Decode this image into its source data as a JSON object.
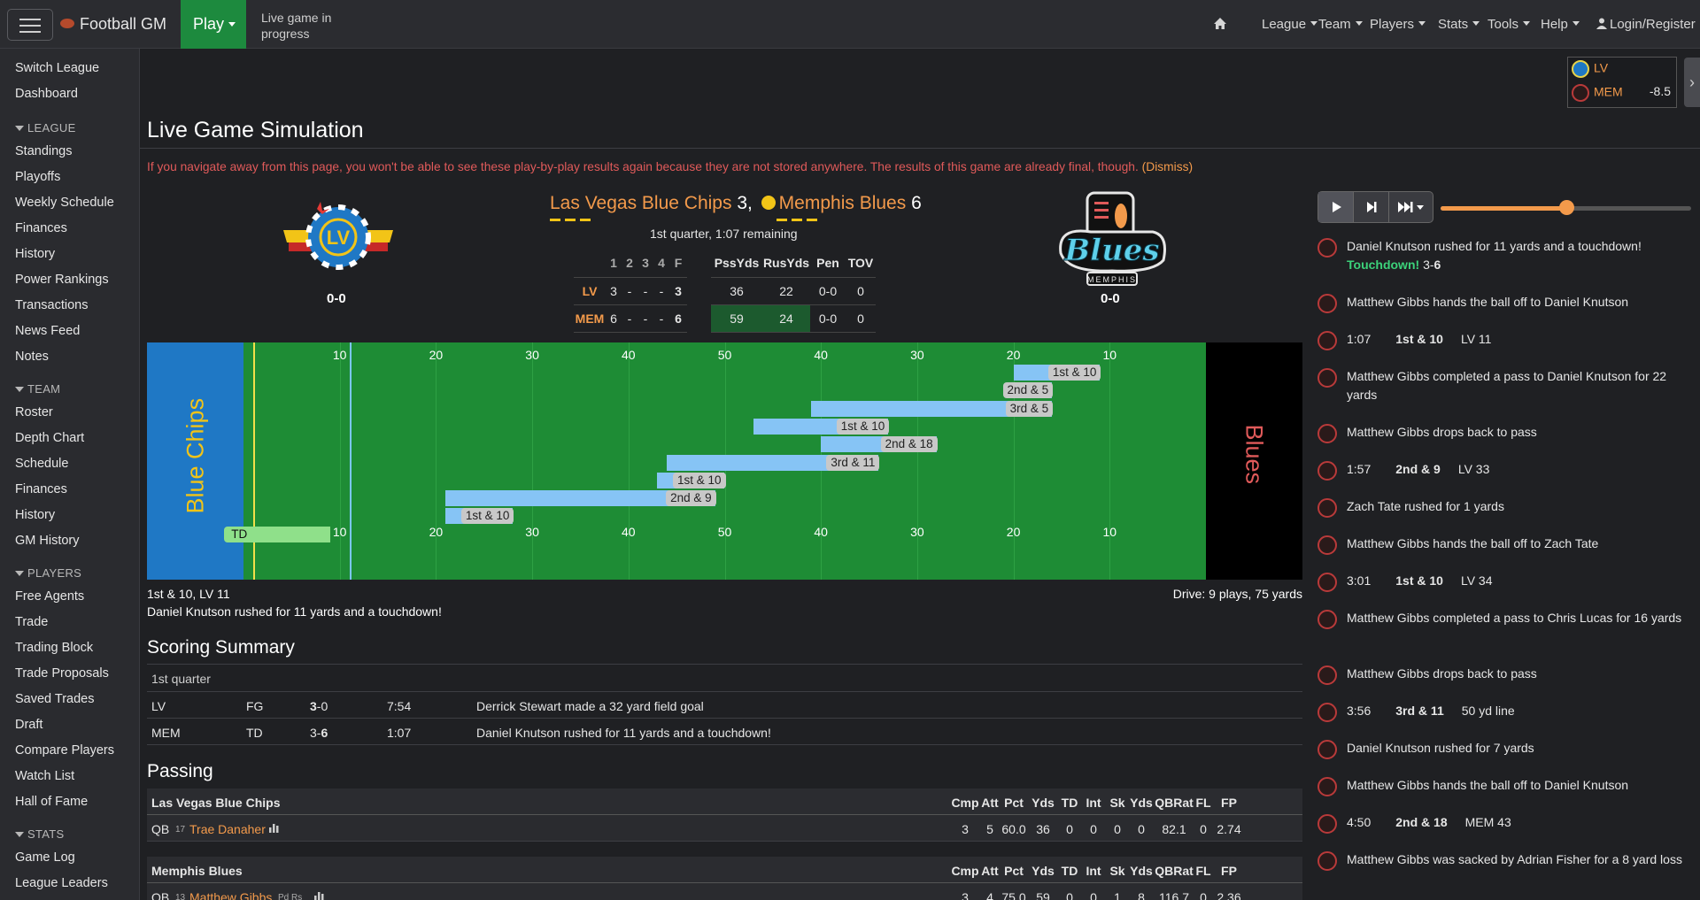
{
  "nav": {
    "brand": "Football GM",
    "play": "Play",
    "live_status": "Live game in progress",
    "menu": [
      "League",
      "Team",
      "Players",
      "Stats",
      "Tools",
      "Help"
    ],
    "login": "Login/Register"
  },
  "sidebar": {
    "top": [
      "Switch League",
      "Dashboard"
    ],
    "league_head": "LEAGUE",
    "league": [
      "Standings",
      "Playoffs",
      "Weekly Schedule",
      "Finances",
      "History",
      "Power Rankings",
      "Transactions",
      "News Feed",
      "Notes"
    ],
    "team_head": "TEAM",
    "team": [
      "Roster",
      "Depth Chart",
      "Schedule",
      "Finances",
      "History",
      "GM History"
    ],
    "players_head": "PLAYERS",
    "players": [
      "Free Agents",
      "Trade",
      "Trading Block",
      "Trade Proposals",
      "Saved Trades",
      "Draft",
      "Compare Players",
      "Watch List",
      "Hall of Fame"
    ],
    "stats_head": "STATS",
    "stats": [
      "Game Log",
      "League Leaders"
    ]
  },
  "mini_score": {
    "away": "LV",
    "home": "MEM",
    "spread": "-8.5"
  },
  "title": "Live Game Simulation",
  "warning": "If you navigate away from this page, you won't be able to see these play-by-play results again because they are not stored anywhere. The results of this game are already final, though.",
  "dismiss": "(Dismiss)",
  "game": {
    "away_name": "Las Vegas Blue Chips",
    "away_score": "3,",
    "home_name": "Memphis Blues",
    "home_score": "6",
    "away_record": "0-0",
    "home_record": "0-0",
    "clock": "1st quarter, 1:07 remaining"
  },
  "quarters": {
    "headers": [
      "",
      "1",
      "2",
      "3",
      "4",
      "F"
    ],
    "rows": [
      [
        "LV",
        "3",
        "-",
        "-",
        "-",
        "3"
      ],
      [
        "MEM",
        "6",
        "-",
        "-",
        "-",
        "6"
      ]
    ]
  },
  "team_stats": {
    "headers": [
      "PssYds",
      "RusYds",
      "Pen",
      "TOV"
    ],
    "rows": [
      [
        "36",
        "22",
        "0-0",
        "0"
      ],
      [
        "59",
        "24",
        "0-0",
        "0"
      ]
    ]
  },
  "field": {
    "away_ez": "Blue Chips",
    "home_ez": "Blues",
    "yard_numbers": [
      "10",
      "20",
      "30",
      "40",
      "50",
      "40",
      "30",
      "20",
      "10"
    ],
    "drives": [
      {
        "label": "1st & 10",
        "start": 80,
        "end": 89
      },
      {
        "label": "2nd & 5",
        "start": 80,
        "end": 84
      },
      {
        "label": "3rd & 5",
        "start": 59,
        "end": 84
      },
      {
        "label": "1st & 10",
        "start": 53,
        "end": 67
      },
      {
        "label": "2nd & 18",
        "start": 60,
        "end": 72
      },
      {
        "label": "3rd & 11",
        "start": 44,
        "end": 66
      },
      {
        "label": "1st & 10",
        "start": 43,
        "end": 50
      },
      {
        "label": "2nd & 9",
        "start": 21,
        "end": 49
      },
      {
        "label": "1st & 10",
        "start": 21,
        "end": 28
      },
      {
        "label": "TD",
        "start": -2,
        "end": 9
      }
    ],
    "situation": "1st & 10, LV 11",
    "drive_summary": "Drive: 9 plays, 75 yards",
    "last_play": "Daniel Knutson rushed for 11 yards and a touchdown!"
  },
  "scoring": {
    "title": "Scoring Summary",
    "quarter": "1st quarter",
    "rows": [
      {
        "team": "LV",
        "type": "FG",
        "score_a": "3",
        "score_sep": "-",
        "score_b": "0",
        "bold": "a",
        "time": "7:54",
        "desc": "Derrick Stewart made a 32 yard field goal"
      },
      {
        "team": "MEM",
        "type": "TD",
        "score_a": "3",
        "score_sep": "-",
        "score_b": "6",
        "bold": "b",
        "time": "1:07",
        "desc": "Daniel Knutson rushed for 11 yards and a touchdown!"
      }
    ]
  },
  "passing": {
    "title": "Passing",
    "headers": [
      "Cmp",
      "Att",
      "Pct",
      "Yds",
      "TD",
      "Int",
      "Sk",
      "Yds",
      "QBRat",
      "FL",
      "FP"
    ],
    "teams": [
      {
        "name": "Las Vegas Blue Chips",
        "player": {
          "pos": "QB",
          "num": "17",
          "name": "Trae Danaher",
          "badge": "",
          "stats": [
            "3",
            "5",
            "60.0",
            "36",
            "0",
            "0",
            "0",
            "0",
            "82.1",
            "0",
            "2.74"
          ]
        }
      },
      {
        "name": "Memphis Blues",
        "player": {
          "pos": "QB",
          "num": "13",
          "name": "Matthew Gibbs",
          "badge": "Pd Rs",
          "stats": [
            "3",
            "4",
            "75.0",
            "59",
            "0",
            "0",
            "1",
            "8",
            "116.7",
            "0",
            "2.36"
          ]
        }
      }
    ]
  },
  "pbp": [
    {
      "text": "Daniel Knutson rushed for 11 yards and a touchdown!",
      "extra": "Touchdown!",
      "score": "3-6"
    },
    {
      "text": "Matthew Gibbs hands the ball off to Daniel Knutson"
    },
    {
      "time": "1:07",
      "down": "1st & 10",
      "spot": "LV 11"
    },
    {
      "text": "Matthew Gibbs completed a pass to Daniel Knutson for 22 yards"
    },
    {
      "text": "Matthew Gibbs drops back to pass"
    },
    {
      "time": "1:57",
      "down": "2nd & 9",
      "spot": "LV 33"
    },
    {
      "text": "Zach Tate rushed for 1 yards"
    },
    {
      "text": "Matthew Gibbs hands the ball off to Zach Tate"
    },
    {
      "time": "3:01",
      "down": "1st & 10",
      "spot": "LV 34"
    },
    {
      "text": "Matthew Gibbs completed a pass to Chris Lucas for 16 yards"
    },
    {
      "text": "Matthew Gibbs drops back to pass"
    },
    {
      "time": "3:56",
      "down": "3rd & 11",
      "spot": "50 yd line"
    },
    {
      "text": "Daniel Knutson rushed for 7 yards"
    },
    {
      "text": "Matthew Gibbs hands the ball off to Daniel Knutson"
    },
    {
      "time": "4:50",
      "down": "2nd & 18",
      "spot": "MEM 43"
    },
    {
      "text": "Matthew Gibbs was sacked by Adrian Fisher for a 8 yard loss"
    },
    {
      "text": "Matthew Gibbs drops back to pass"
    }
  ],
  "colors": {
    "accent": "#f39a4b",
    "field": "#1e8c35",
    "away_endzone": "#1f78c5",
    "home_endzone": "#000000",
    "drive_bar": "#86c4f5",
    "td_bar": "#8fe08a"
  }
}
